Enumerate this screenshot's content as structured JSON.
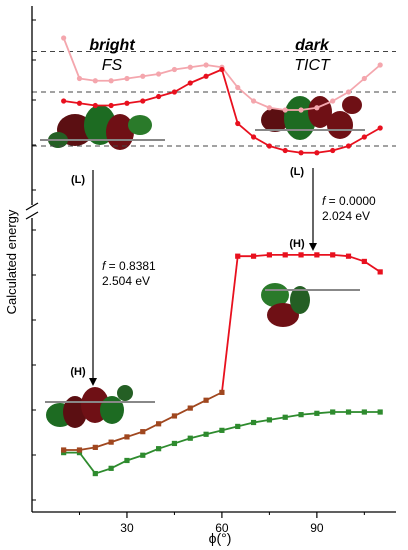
{
  "chart_data": {
    "type": "line",
    "title": "",
    "xlabel": "ϕ(°)",
    "ylabel": "Calculated energy",
    "x_ticks": [
      30,
      60,
      90
    ],
    "xlim": [
      0,
      115
    ],
    "y_axis_break": true,
    "y_ticks_shown": false,
    "grid": false,
    "legend": "none",
    "colors": {
      "upper_light": "#f4a6ad",
      "upper_red": "#e8101e",
      "lower_brown": "#a0471f",
      "lower_red": "#e8101e",
      "green": "#2e8b2e",
      "transition_arrow": "#000000",
      "dashed_line": "#444444"
    },
    "series": [
      {
        "role": "upper_light",
        "x": [
          10,
          15,
          20,
          25,
          30,
          35,
          40,
          45,
          50,
          55,
          60,
          65,
          70,
          75,
          80,
          85,
          90,
          95,
          100,
          105,
          110
        ],
        "y": [
          1.56,
          1.47,
          1.465,
          1.465,
          1.47,
          1.475,
          1.48,
          1.49,
          1.495,
          1.5,
          1.495,
          1.45,
          1.42,
          1.405,
          1.4,
          1.4,
          1.405,
          1.42,
          1.44,
          1.47,
          1.5
        ]
      },
      {
        "role": "upper_red",
        "x": [
          10,
          15,
          20,
          25,
          30,
          35,
          40,
          45,
          50,
          55,
          60,
          65,
          70,
          75,
          80,
          85,
          90,
          95,
          100,
          105,
          110
        ],
        "y": [
          1.42,
          1.415,
          1.41,
          1.41,
          1.415,
          1.42,
          1.43,
          1.44,
          1.46,
          1.475,
          1.49,
          1.37,
          1.34,
          1.32,
          1.31,
          1.305,
          1.305,
          1.31,
          1.32,
          1.34,
          1.36
        ]
      },
      {
        "role": "lower_orange_red",
        "x": [
          10,
          15,
          20,
          25,
          30,
          35,
          40,
          45,
          50,
          55,
          60,
          65,
          70,
          75,
          80,
          85,
          90,
          95,
          100,
          105,
          110
        ],
        "y": [
          0.21,
          0.21,
          0.22,
          0.24,
          0.26,
          0.28,
          0.31,
          0.34,
          0.37,
          0.4,
          0.43,
          0.95,
          0.95,
          0.955,
          0.955,
          0.955,
          0.955,
          0.955,
          0.95,
          0.93,
          0.89
        ],
        "segments_color": [
          "brown from 10 to 60",
          "red from 60 to 110"
        ]
      },
      {
        "role": "green",
        "x": [
          10,
          15,
          20,
          25,
          30,
          35,
          40,
          45,
          50,
          55,
          60,
          65,
          70,
          75,
          80,
          85,
          90,
          95,
          100,
          105,
          110
        ],
        "y": [
          0.2,
          0.2,
          0.12,
          0.14,
          0.17,
          0.19,
          0.215,
          0.235,
          0.255,
          0.27,
          0.285,
          0.3,
          0.315,
          0.325,
          0.335,
          0.345,
          0.35,
          0.355,
          0.355,
          0.355,
          0.355
        ]
      }
    ],
    "dashed_levels": [
      1.53,
      1.44,
      1.32
    ],
    "annotations": {
      "bright_title": "bright",
      "bright_sub": "FS",
      "dark_title": "dark",
      "dark_sub": "TICT",
      "L_left": "(L)",
      "L_right": "(L)",
      "H_left": "(H)",
      "H_right": "(H)",
      "f_left_prefix": "f",
      "f_left_value": " = 0.8381",
      "e_left": "2.504 eV",
      "f_right_prefix": "f",
      "f_right_value": " = 0.0000",
      "e_right": "2.024 eV"
    }
  }
}
